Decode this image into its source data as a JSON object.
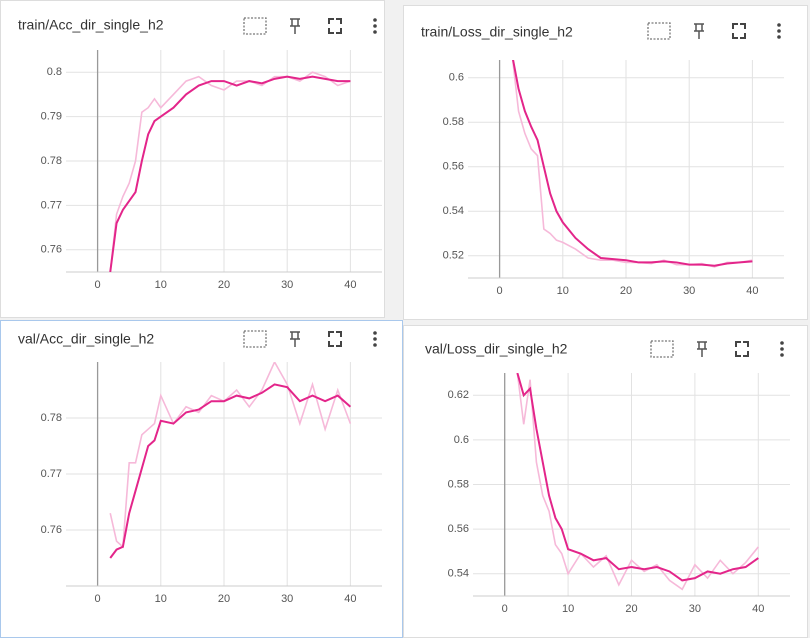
{
  "chart_data": [
    {
      "type": "line",
      "title": "train/Acc_dir_single_h2",
      "x": [
        2,
        3,
        4,
        5,
        6,
        7,
        8,
        9,
        10,
        12,
        14,
        16,
        18,
        20,
        22,
        24,
        26,
        28,
        30,
        32,
        34,
        36,
        38,
        40
      ],
      "series": [
        {
          "color": "#f6b9d9",
          "values": [
            0.755,
            0.768,
            0.772,
            0.775,
            0.78,
            0.791,
            0.792,
            0.794,
            0.792,
            0.795,
            0.798,
            0.799,
            0.797,
            0.796,
            0.798,
            0.798,
            0.797,
            0.799,
            0.799,
            0.798,
            0.8,
            0.799,
            0.797,
            0.798
          ]
        },
        {
          "color": "#e3258a",
          "values": [
            0.755,
            0.766,
            0.769,
            0.771,
            0.773,
            0.78,
            0.786,
            0.789,
            0.79,
            0.792,
            0.795,
            0.797,
            0.798,
            0.798,
            0.797,
            0.798,
            0.7975,
            0.7985,
            0.799,
            0.7985,
            0.799,
            0.7985,
            0.798,
            0.798
          ]
        }
      ],
      "xlim": [
        -5,
        45
      ],
      "xticks": [
        0,
        10,
        20,
        30,
        40
      ],
      "ylim": [
        0.755,
        0.805
      ],
      "yticks": [
        0.76,
        0.77,
        0.78,
        0.79,
        0.8
      ],
      "grid": true
    },
    {
      "type": "line",
      "title": "train/Loss_dir_single_h2",
      "x": [
        2,
        3,
        4,
        5,
        6,
        7,
        8,
        9,
        10,
        12,
        14,
        16,
        18,
        20,
        22,
        24,
        26,
        28,
        30,
        32,
        34,
        36,
        38,
        40
      ],
      "series": [
        {
          "color": "#f6b9d9",
          "values": [
            0.61,
            0.585,
            0.575,
            0.568,
            0.565,
            0.532,
            0.53,
            0.527,
            0.526,
            0.523,
            0.519,
            0.518,
            0.518,
            0.517,
            0.517,
            0.5165,
            0.518,
            0.516,
            0.516,
            0.5165,
            0.515,
            0.517,
            0.517,
            0.518
          ]
        },
        {
          "color": "#e3258a",
          "values": [
            0.61,
            0.595,
            0.585,
            0.578,
            0.572,
            0.56,
            0.548,
            0.54,
            0.535,
            0.528,
            0.523,
            0.519,
            0.5185,
            0.518,
            0.517,
            0.517,
            0.5175,
            0.517,
            0.516,
            0.516,
            0.5155,
            0.5165,
            0.517,
            0.5175
          ]
        }
      ],
      "xlim": [
        -5,
        45
      ],
      "xticks": [
        0,
        10,
        20,
        30,
        40
      ],
      "ylim": [
        0.51,
        0.608
      ],
      "yticks": [
        0.52,
        0.54,
        0.56,
        0.58,
        0.6
      ],
      "grid": true
    },
    {
      "type": "line",
      "title": "val/Acc_dir_single_h2",
      "x": [
        2,
        3,
        4,
        5,
        6,
        7,
        8,
        9,
        10,
        12,
        14,
        16,
        18,
        20,
        22,
        24,
        26,
        28,
        30,
        32,
        34,
        36,
        38,
        40
      ],
      "series": [
        {
          "color": "#f6b9d9",
          "values": [
            0.763,
            0.758,
            0.757,
            0.772,
            0.772,
            0.777,
            0.778,
            0.779,
            0.784,
            0.779,
            0.782,
            0.781,
            0.784,
            0.783,
            0.785,
            0.782,
            0.785,
            0.79,
            0.786,
            0.779,
            0.786,
            0.778,
            0.785,
            0.779
          ]
        },
        {
          "color": "#e3258a",
          "values": [
            0.755,
            0.7565,
            0.757,
            0.763,
            0.767,
            0.771,
            0.775,
            0.776,
            0.7795,
            0.779,
            0.781,
            0.7815,
            0.783,
            0.783,
            0.784,
            0.7835,
            0.7845,
            0.786,
            0.7855,
            0.783,
            0.784,
            0.783,
            0.784,
            0.782
          ]
        }
      ],
      "xlim": [
        -5,
        45
      ],
      "xticks": [
        0,
        10,
        20,
        30,
        40
      ],
      "ylim": [
        0.75,
        0.79
      ],
      "yticks": [
        0.76,
        0.77,
        0.78
      ],
      "grid": true
    },
    {
      "type": "line",
      "title": "val/Loss_dir_single_h2",
      "x": [
        2,
        3,
        4,
        5,
        6,
        7,
        8,
        9,
        10,
        12,
        14,
        16,
        18,
        20,
        22,
        24,
        26,
        28,
        30,
        32,
        34,
        36,
        38,
        40
      ],
      "series": [
        {
          "color": "#f6b9d9",
          "values": [
            0.63,
            0.607,
            0.627,
            0.59,
            0.575,
            0.568,
            0.553,
            0.549,
            0.54,
            0.549,
            0.543,
            0.548,
            0.535,
            0.546,
            0.541,
            0.544,
            0.537,
            0.533,
            0.544,
            0.538,
            0.546,
            0.54,
            0.545,
            0.552
          ]
        },
        {
          "color": "#e3258a",
          "values": [
            0.63,
            0.62,
            0.623,
            0.605,
            0.59,
            0.575,
            0.565,
            0.56,
            0.551,
            0.549,
            0.546,
            0.547,
            0.542,
            0.543,
            0.542,
            0.543,
            0.541,
            0.537,
            0.538,
            0.541,
            0.54,
            0.542,
            0.543,
            0.547
          ]
        }
      ],
      "xlim": [
        -5,
        45
      ],
      "xticks": [
        0,
        10,
        20,
        30,
        40
      ],
      "ylim": [
        0.53,
        0.63
      ],
      "yticks": [
        0.54,
        0.56,
        0.58,
        0.6,
        0.62
      ],
      "grid": true
    }
  ]
}
